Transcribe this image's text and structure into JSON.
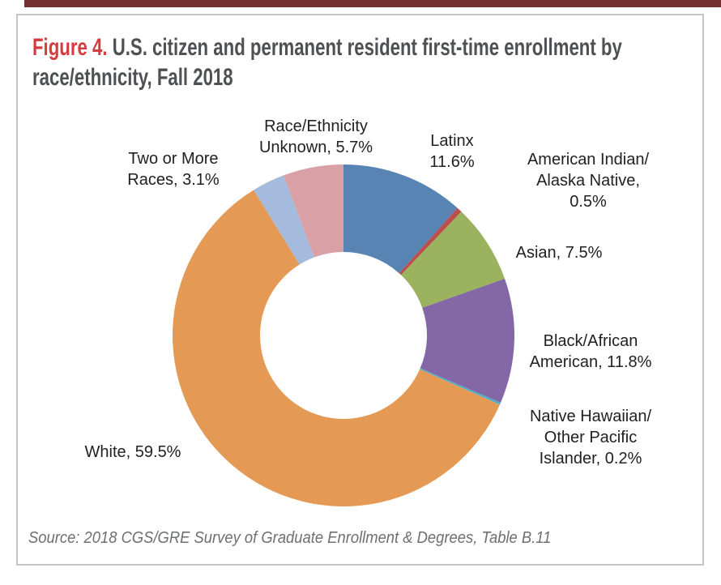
{
  "page": {
    "top_rule_color": "#74302E"
  },
  "figure": {
    "label": "Figure 4.",
    "label_color": "#D53C3E",
    "title": "U.S. citizen and permanent resident first-time enrollment by race/ethnicity, Fall 2018",
    "source": "Source: 2018 CGS/GRE Survey of Graduate Enrollment & Degrees, Table B.11"
  },
  "chart_data": {
    "type": "pie",
    "subtype": "donut",
    "title": "U.S. citizen and permanent resident first-time enrollment by race/ethnicity, Fall 2018",
    "unit": "percent",
    "start_angle_deg": 0,
    "direction": "clockwise",
    "inner_radius_ratio": 0.49,
    "legend_position": "none",
    "labels_position": "outside",
    "segments": [
      {
        "label": "Latinx",
        "value": 11.6,
        "color": "#5884B3",
        "label_lines": [
          "Latinx",
          "11.6%"
        ]
      },
      {
        "label": "American Indian/Alaska Native",
        "value": 0.5,
        "color": "#BA4F4D",
        "label_lines": [
          "American Indian/",
          "Alaska Native,",
          "0.5%"
        ]
      },
      {
        "label": "Asian",
        "value": 7.5,
        "color": "#9BB35F",
        "label_lines": [
          "Asian, 7.5%"
        ]
      },
      {
        "label": "Black/African American",
        "value": 11.8,
        "color": "#8467A6",
        "label_lines": [
          "Black/African",
          "American, 11.8%"
        ]
      },
      {
        "label": "Native Hawaiian/Other Pacific Islander",
        "value": 0.2,
        "color": "#4EAFC8",
        "label_lines": [
          "Native Hawaiian/",
          "Other Pacific",
          "Islander, 0.2%"
        ]
      },
      {
        "label": "White",
        "value": 59.5,
        "color": "#E49A54",
        "label_lines": [
          "White, 59.5%"
        ]
      },
      {
        "label": "Two or More Races",
        "value": 3.1,
        "color": "#A5BBDD",
        "label_lines": [
          "Two or More",
          "Races, 3.1%"
        ]
      },
      {
        "label": "Race/Ethnicity Unknown",
        "value": 5.7,
        "color": "#D9A0A5",
        "label_lines": [
          "Race/Ethnicity",
          "Unknown, 5.7%"
        ]
      }
    ]
  }
}
